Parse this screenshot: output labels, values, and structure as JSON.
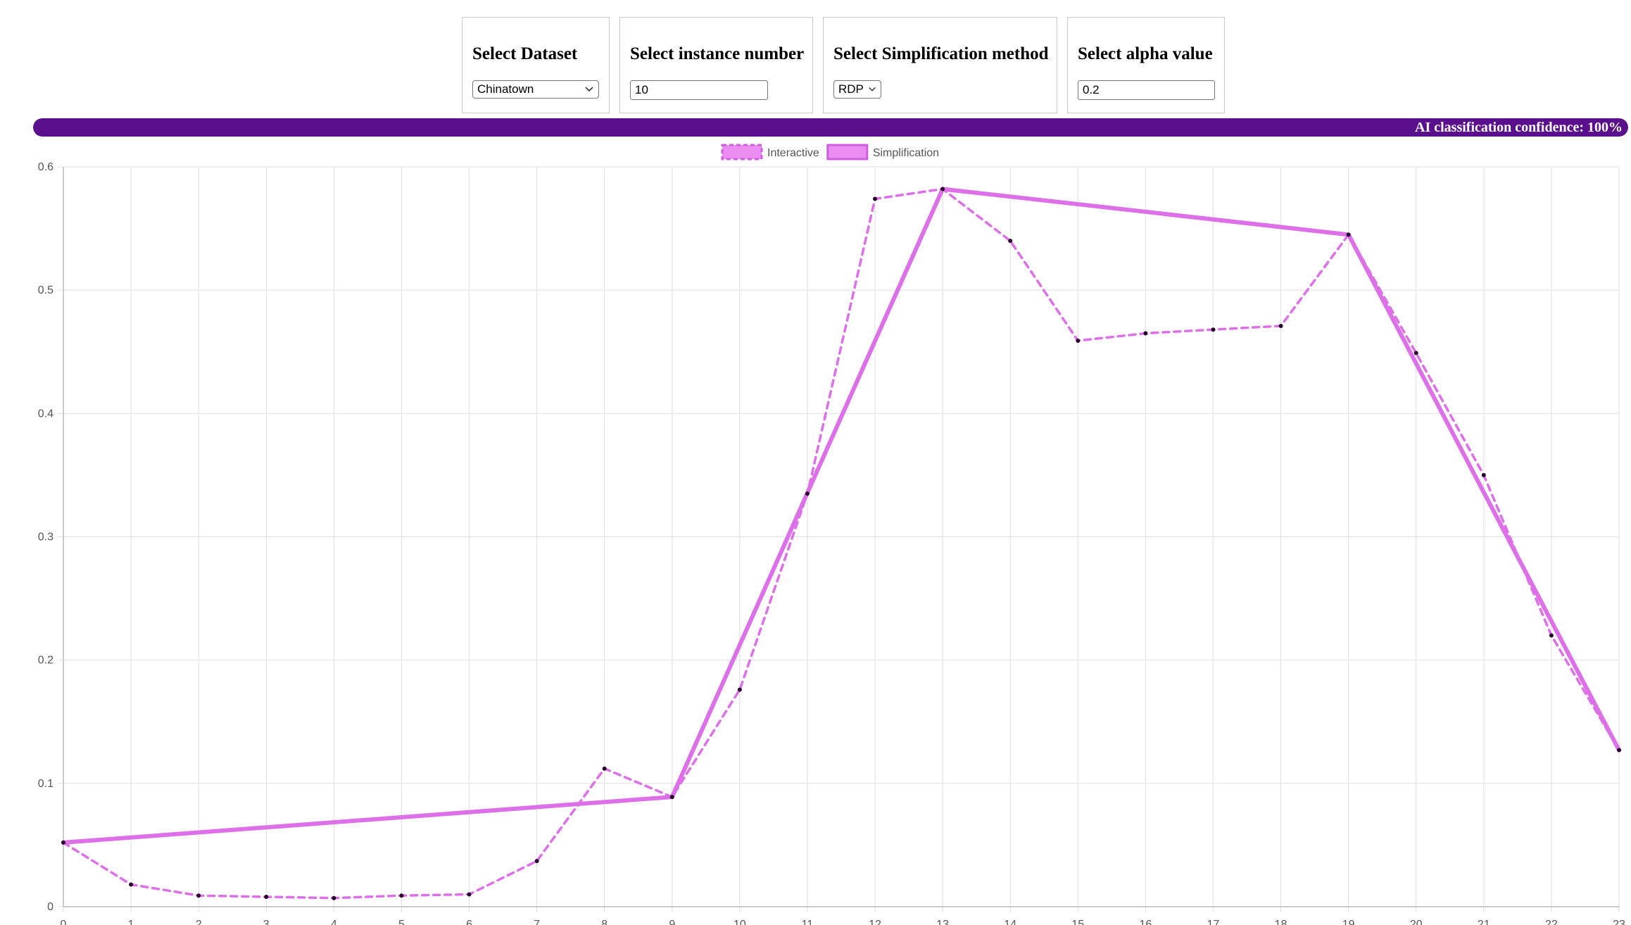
{
  "controls": {
    "dataset": {
      "label": "Select Dataset",
      "value": "Chinatown"
    },
    "instance": {
      "label": "Select instance number",
      "value": "10"
    },
    "method": {
      "label": "Select Simplification method",
      "value": "RDP"
    },
    "alpha": {
      "label": "Select alpha value",
      "value": "0.2"
    }
  },
  "confidence": {
    "text": "AI classification confidence: 100%",
    "value": 100,
    "color": "#5a0f8c"
  },
  "chart_data": {
    "type": "line",
    "legend_position": "top",
    "grid": true,
    "x": [
      0,
      1,
      2,
      3,
      4,
      5,
      6,
      7,
      8,
      9,
      10,
      11,
      12,
      13,
      14,
      15,
      16,
      17,
      18,
      19,
      20,
      21,
      22,
      23
    ],
    "xlim": [
      0,
      23
    ],
    "ylim": [
      0,
      0.6
    ],
    "yticks": [
      "0",
      "0.1",
      "0.2",
      "0.3",
      "0.4",
      "0.5",
      "0.6"
    ],
    "xticks": [
      "0",
      "1",
      "2",
      "3",
      "4",
      "5",
      "6",
      "7",
      "8",
      "9",
      "10",
      "11",
      "12",
      "13",
      "14",
      "15",
      "16",
      "17",
      "18",
      "19",
      "20",
      "21",
      "22",
      "23"
    ],
    "series": [
      {
        "name": "Interactive",
        "style": "dashed",
        "color": "#dd6fe8",
        "x": [
          0,
          1,
          2,
          3,
          4,
          5,
          6,
          7,
          8,
          9,
          10,
          11,
          12,
          13,
          14,
          15,
          16,
          17,
          18,
          19,
          20,
          21,
          22,
          23
        ],
        "values": [
          0.052,
          0.018,
          0.009,
          0.008,
          0.007,
          0.009,
          0.01,
          0.037,
          0.112,
          0.089,
          0.176,
          0.335,
          0.574,
          0.582,
          0.54,
          0.459,
          0.465,
          0.468,
          0.471,
          0.545,
          0.449,
          0.35,
          0.22,
          0.127
        ]
      },
      {
        "name": "Simplification",
        "style": "solid",
        "color": "#dd6fe8",
        "x": [
          0,
          9,
          13,
          19,
          23
        ],
        "values": [
          0.052,
          0.089,
          0.582,
          0.545,
          0.127
        ]
      }
    ]
  }
}
